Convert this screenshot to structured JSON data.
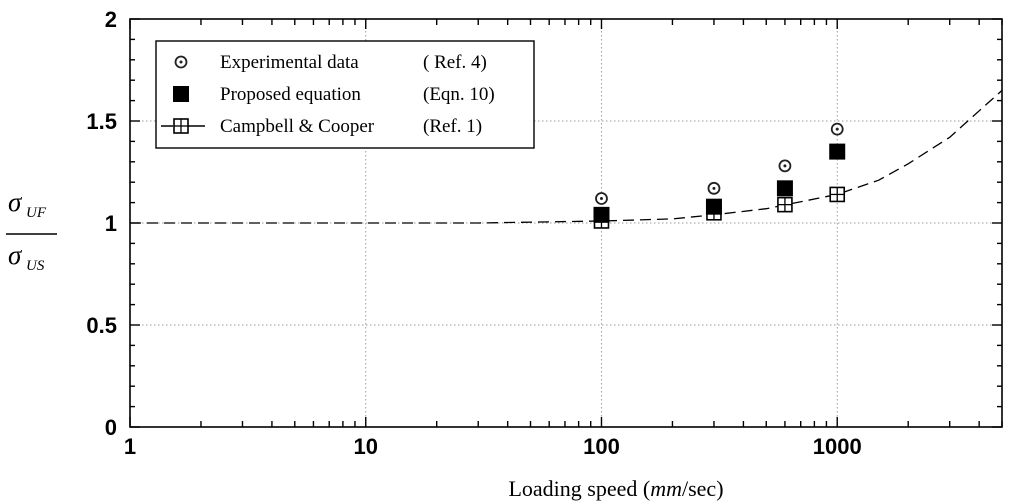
{
  "chart_data": {
    "type": "scatter",
    "xscale": "log",
    "xlim": [
      1,
      5000
    ],
    "ylim": [
      0,
      2
    ],
    "grid": true,
    "x_ticks": [
      {
        "value": 1,
        "label": "1"
      },
      {
        "value": 10,
        "label": "10"
      },
      {
        "value": 100,
        "label": "100"
      },
      {
        "value": 1000,
        "label": "1000"
      }
    ],
    "y_ticks": [
      {
        "value": 0,
        "label": "0"
      },
      {
        "value": 0.5,
        "label": "0.5"
      },
      {
        "value": 1,
        "label": "1"
      },
      {
        "value": 1.5,
        "label": "1.5"
      },
      {
        "value": 2,
        "label": "2"
      }
    ],
    "xlabel": {
      "prefix": "Loading speed (",
      "italic": "mm",
      "suffix": "/sec)"
    },
    "ylabel": {
      "num_symbol": "σ",
      "num_sub": "UF",
      "den_symbol": "σ",
      "den_sub": "US"
    },
    "legend_position": "top-left",
    "series": [
      {
        "name": "Experimental data",
        "ref": "( Ref. 4)",
        "marker": "circle-dot",
        "x": [
          100,
          300,
          600,
          1000
        ],
        "y": [
          1.12,
          1.17,
          1.28,
          1.46
        ]
      },
      {
        "name": "Proposed equation",
        "ref": "(Eqn. 10)",
        "marker": "filled-square",
        "x": [
          100,
          300,
          600,
          1000
        ],
        "y": [
          1.04,
          1.08,
          1.17,
          1.35
        ]
      },
      {
        "name": "Campbell & Cooper",
        "ref": "(Ref. 1)",
        "marker": "crossed-square",
        "line": "dashed",
        "x": [
          100,
          300,
          600,
          1000
        ],
        "y": [
          1.01,
          1.05,
          1.09,
          1.14
        ],
        "curve": {
          "x": [
            1,
            30,
            100,
            200,
            300,
            500,
            1000,
            1500,
            2000,
            3000,
            4000,
            5000
          ],
          "y": [
            1.0,
            1.0,
            1.01,
            1.02,
            1.04,
            1.07,
            1.14,
            1.21,
            1.29,
            1.42,
            1.55,
            1.65
          ]
        }
      }
    ]
  }
}
